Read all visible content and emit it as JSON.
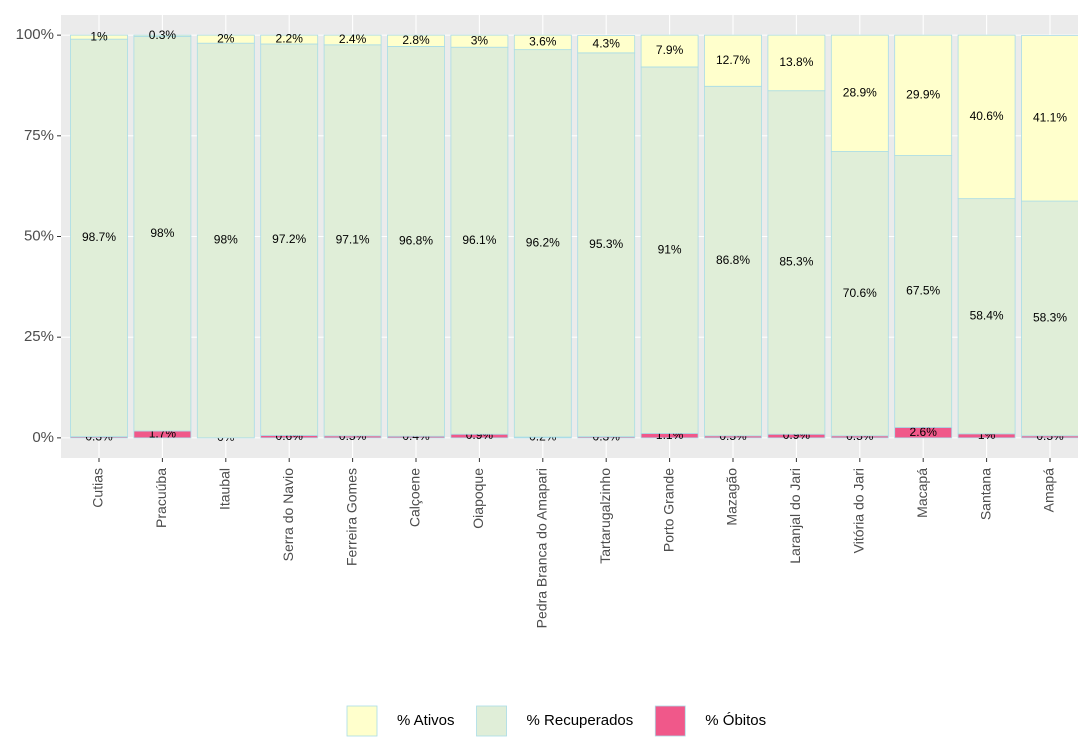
{
  "chart_data": {
    "type": "stacked_bar",
    "categories": [
      "Cutias",
      "Pracuúba",
      "Itaubal",
      "Serra do Navio",
      "Ferreira Gomes",
      "Calçoene",
      "Oiapoque",
      "Pedra Branca do Amapari",
      "Tartarugalzinho",
      "Porto Grande",
      "Mazagão",
      "Laranjal do Jari",
      "Vitória do Jari",
      "Macapá",
      "Santana",
      "Amapá"
    ],
    "series": [
      {
        "name": "% Ativos",
        "color": "#ffffcc",
        "values": [
          1,
          0.3,
          2,
          2.2,
          2.4,
          2.8,
          3,
          3.6,
          4.3,
          7.9,
          12.7,
          13.8,
          28.9,
          29.9,
          40.6,
          41.1
        ],
        "value_labels": [
          "1%",
          "0.3%",
          "2%",
          "2.2%",
          "2.4%",
          "2.8%",
          "3%",
          "3.6%",
          "4.3%",
          "7.9%",
          "12.7%",
          "13.8%",
          "28.9%",
          "29.9%",
          "40.6%",
          "41.1%"
        ]
      },
      {
        "name": "% Recuperados",
        "color": "#e0eed8",
        "values": [
          98.7,
          98,
          98,
          97.2,
          97.1,
          96.8,
          96.1,
          96.2,
          95.3,
          91,
          86.8,
          85.3,
          70.6,
          67.5,
          58.4,
          58.3
        ],
        "value_labels": [
          "98.7%",
          "98%",
          "98%",
          "97.2%",
          "97.1%",
          "96.8%",
          "96.1%",
          "96.2%",
          "95.3%",
          "91%",
          "86.8%",
          "85.3%",
          "70.6%",
          "67.5%",
          "58.4%",
          "58.3%"
        ]
      },
      {
        "name": "% Óbitos",
        "color": "#f0588a",
        "values": [
          0.3,
          1.7,
          0,
          0.6,
          0.5,
          0.4,
          0.9,
          0.2,
          0.3,
          1.1,
          0.5,
          0.9,
          0.5,
          2.6,
          1,
          0.5
        ],
        "value_labels": [
          "0.3%",
          "1.7%",
          "0%",
          "0.6%",
          "0.5%",
          "0.4%",
          "0.9%",
          "0.2%",
          "0.3%",
          "1.1%",
          "0.5%",
          "0.9%",
          "0.5%",
          "2.6%",
          "1%",
          "0.5%"
        ]
      }
    ],
    "ylim": [
      -5,
      105
    ],
    "yticks": [
      {
        "value": 0,
        "label": "0%"
      },
      {
        "value": 25,
        "label": "25%"
      },
      {
        "value": 50,
        "label": "50%"
      },
      {
        "value": 75,
        "label": "75%"
      },
      {
        "value": 100,
        "label": "100%"
      }
    ],
    "grid": true,
    "legend": "bottom"
  }
}
